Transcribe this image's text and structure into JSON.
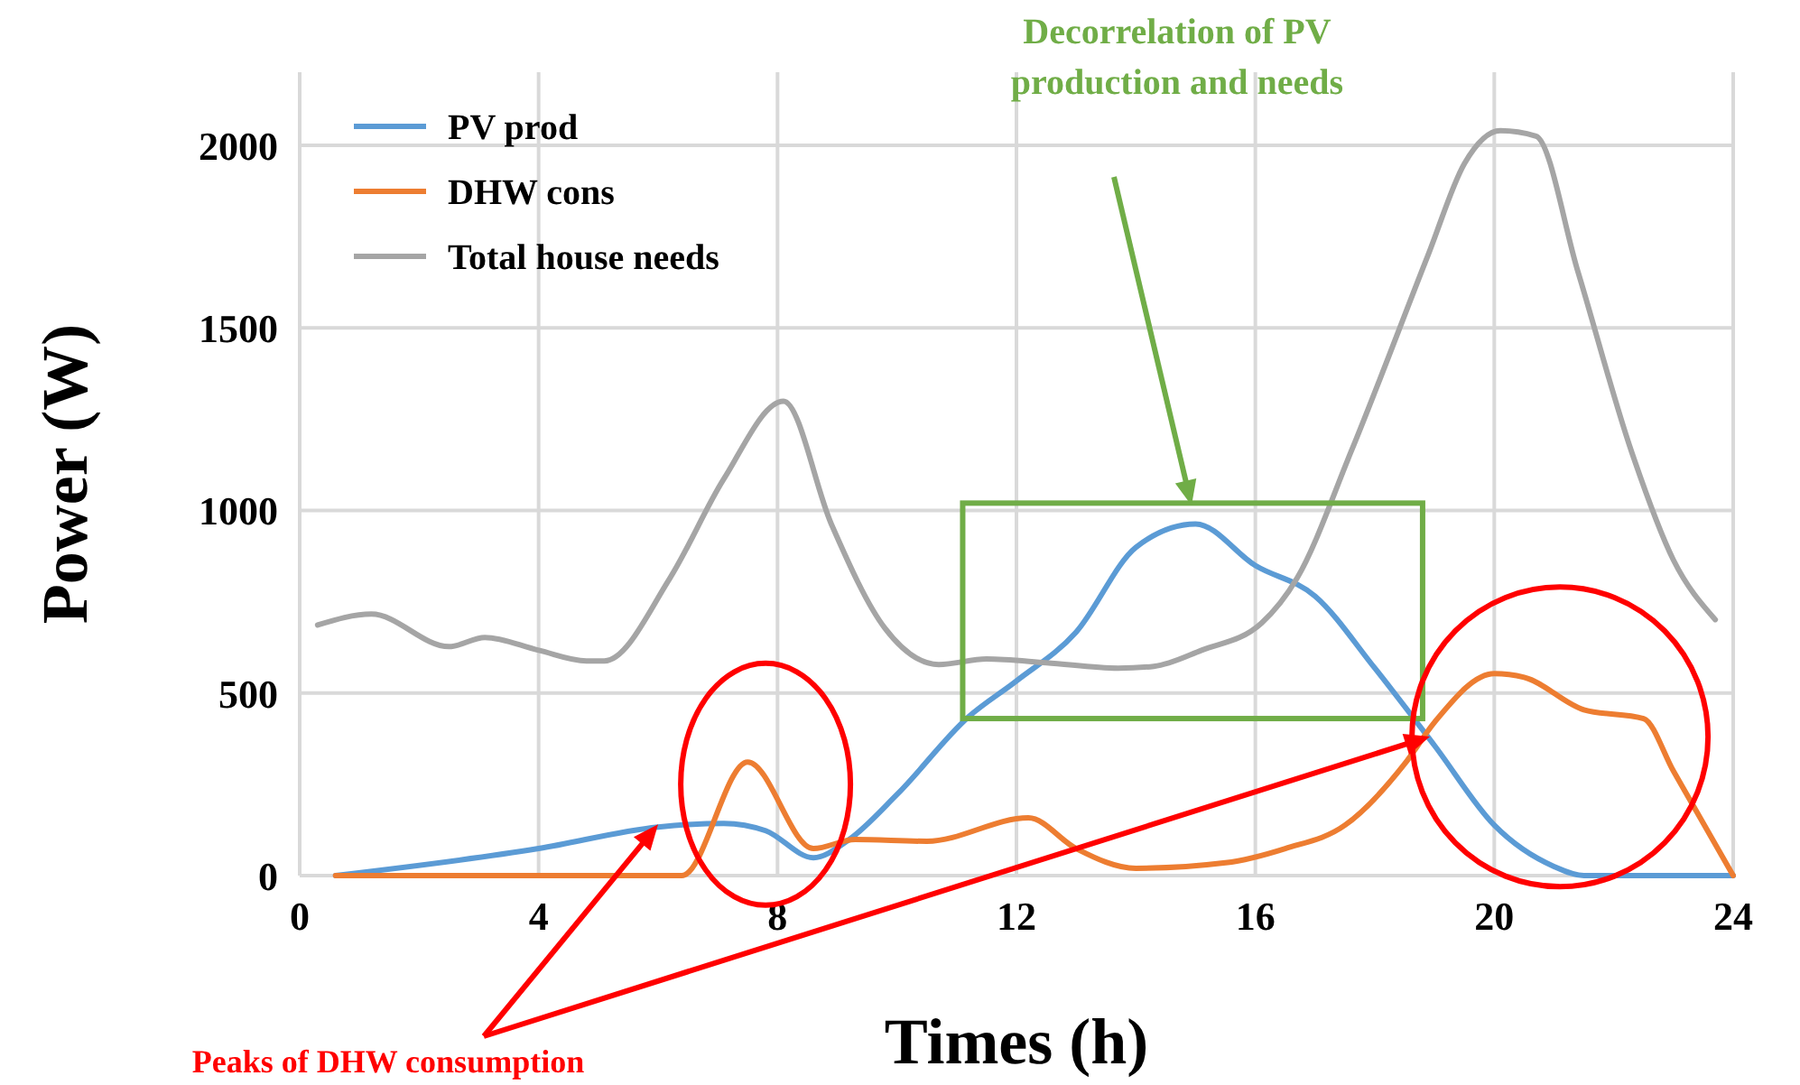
{
  "chart_data": {
    "type": "line",
    "xlabel": "Times (h)",
    "ylabel": "Power (W)",
    "xlim": [
      0,
      24
    ],
    "xticks": [
      0,
      4,
      8,
      12,
      16,
      20,
      24
    ],
    "ylim": [
      0,
      2200
    ],
    "yticks": [
      0,
      500,
      1000,
      1500,
      2000
    ],
    "grid": true,
    "legend": "top left",
    "marker": "none",
    "line_style": "solid",
    "annotations": [
      "Decorrelation of PV production and needs",
      {
        "text": "Peaks of DHW consumption",
        "x": 6,
        "y": 140
      }
    ],
    "series": [
      {
        "name": "PV prod",
        "color": "#5b9bd5",
        "x": [
          0.6,
          4,
          6,
          7.1,
          7.8,
          8.6,
          9.2,
          10,
          11.2,
          12,
          13,
          14,
          15,
          16,
          17,
          18,
          19,
          20,
          21,
          21.5,
          24
        ],
        "values": [
          0,
          74,
          133,
          143,
          123,
          49,
          99,
          222,
          435,
          533,
          667,
          899,
          963,
          849,
          765,
          568,
          356,
          138,
          25,
          0,
          0
        ]
      },
      {
        "name": "DHW cons",
        "color": "#ed7d31",
        "x": [
          0.6,
          6.4,
          7.5,
          8.6,
          9.3,
          10.5,
          12.2,
          13,
          14,
          15.5,
          16.5,
          17.5,
          18.5,
          19,
          20,
          20.5,
          21.5,
          22.5,
          23,
          24
        ],
        "values": [
          0,
          0,
          311,
          74,
          99,
          94,
          158,
          74,
          20,
          35,
          74,
          138,
          306,
          420,
          553,
          543,
          454,
          430,
          286,
          0
        ]
      },
      {
        "name": "Total house needs",
        "color": "#a5a5a5",
        "x": [
          0.3,
          1.2,
          2.5,
          3.1,
          4,
          4.8,
          5.1,
          6.2,
          7.1,
          8.1,
          8.9,
          9.8,
          10.7,
          11.5,
          12.5,
          13.7,
          14.3,
          15.1,
          16.1,
          16.7,
          17.6,
          18.9,
          19.5,
          20.1,
          20.7,
          21.4,
          22.3,
          23,
          23.7
        ],
        "values": [
          686,
          716,
          627,
          652,
          617,
          588,
          588,
          815,
          1086,
          1299,
          963,
          677,
          578,
          593,
          583,
          568,
          573,
          617,
          691,
          815,
          1160,
          1703,
          1950,
          2040,
          2025,
          1654,
          1160,
          864,
          701
        ]
      }
    ]
  }
}
